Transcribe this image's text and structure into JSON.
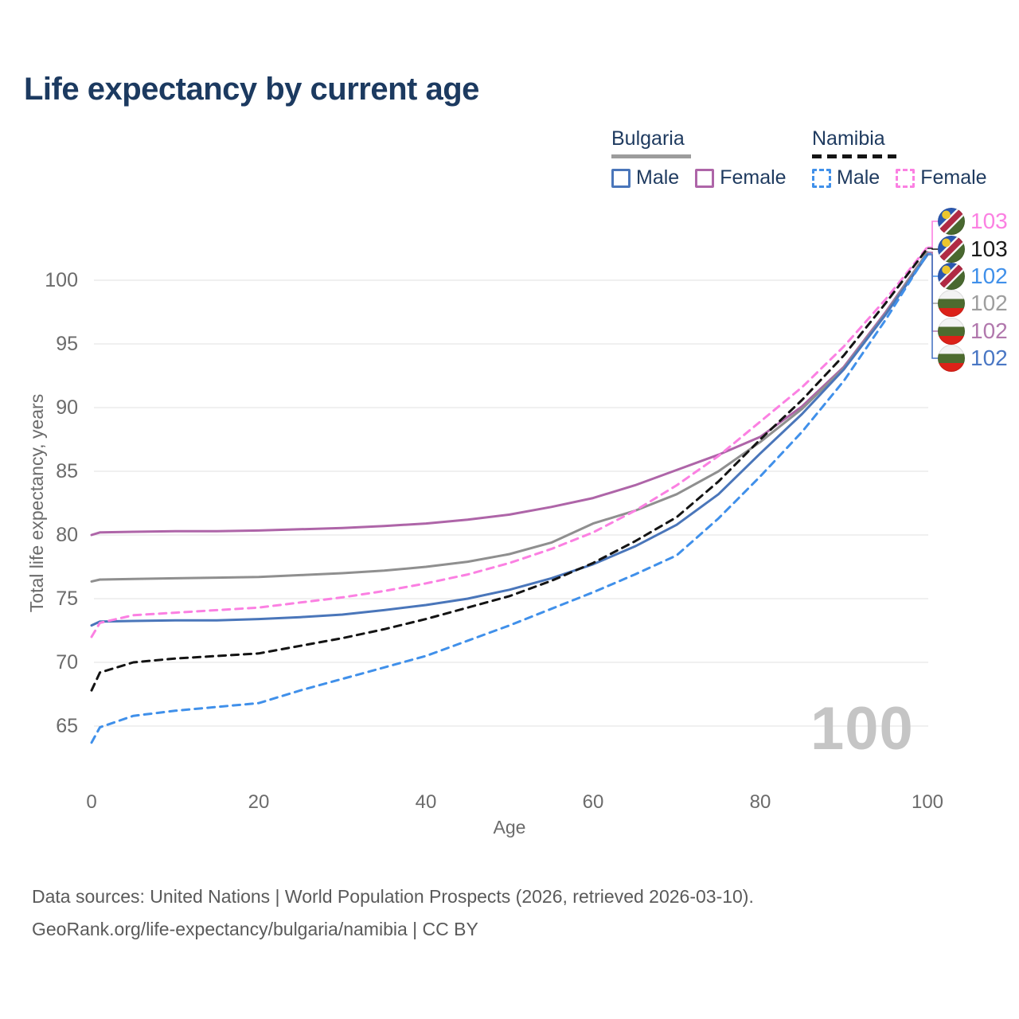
{
  "title": "Life expectancy by current age",
  "legend": {
    "groups": [
      {
        "name": "Bulgaria",
        "line_style": "solid",
        "underline_color": "#9c9c9c",
        "items": [
          {
            "label": "Male",
            "color": "#4a76ba"
          },
          {
            "label": "Female",
            "color": "#ae65a8"
          }
        ]
      },
      {
        "name": "Namibia",
        "line_style": "dashed",
        "underline_color": "#141414",
        "items": [
          {
            "label": "Male",
            "color": "#4090ea"
          },
          {
            "label": "Female",
            "color": "#fb80e2"
          }
        ]
      }
    ]
  },
  "watermark": "100",
  "chart_data": {
    "type": "line",
    "title": "Life expectancy by current age",
    "xlabel": "Age",
    "ylabel": "Total life expectancy, years",
    "xlim": [
      0,
      100
    ],
    "ylim": [
      62,
      104
    ],
    "xticks": [
      0,
      20,
      40,
      60,
      80,
      100
    ],
    "yticks": [
      65,
      70,
      75,
      80,
      85,
      90,
      95,
      100
    ],
    "grid": "horizontal",
    "legend_position": "top-right",
    "x": [
      0,
      1,
      5,
      10,
      15,
      20,
      25,
      30,
      35,
      40,
      45,
      50,
      55,
      60,
      65,
      70,
      75,
      80,
      85,
      90,
      95,
      100
    ],
    "series": [
      {
        "name": "Bulgaria Female",
        "country": "Bulgaria",
        "sex": "Female",
        "style": "solid",
        "color": "#ae65a8",
        "values": [
          80.0,
          80.2,
          80.25,
          80.3,
          80.3,
          80.35,
          80.45,
          80.55,
          80.7,
          80.9,
          81.2,
          81.6,
          82.2,
          82.9,
          83.9,
          85.1,
          86.3,
          87.7,
          90.1,
          93.2,
          97.5,
          102.2
        ]
      },
      {
        "name": "Bulgaria Both sexes",
        "country": "Bulgaria",
        "sex": "Both",
        "style": "solid",
        "color": "#8f8f8f",
        "values": [
          76.35,
          76.5,
          76.55,
          76.6,
          76.65,
          76.7,
          76.85,
          77.0,
          77.2,
          77.5,
          77.9,
          78.5,
          79.4,
          80.9,
          81.9,
          83.2,
          85.0,
          87.3,
          89.9,
          93.1,
          97.4,
          102.2
        ]
      },
      {
        "name": "Bulgaria Male",
        "country": "Bulgaria",
        "sex": "Male",
        "style": "solid",
        "color": "#4a76ba",
        "values": [
          72.9,
          73.2,
          73.25,
          73.3,
          73.3,
          73.4,
          73.55,
          73.75,
          74.1,
          74.5,
          75.0,
          75.7,
          76.6,
          77.7,
          79.1,
          80.8,
          83.2,
          86.4,
          89.5,
          93.0,
          97.3,
          102.0
        ]
      },
      {
        "name": "Namibia Female",
        "country": "Namibia",
        "sex": "Female",
        "style": "dashed",
        "color": "#fb80e2",
        "values": [
          72.0,
          73.1,
          73.7,
          73.9,
          74.1,
          74.3,
          74.7,
          75.1,
          75.6,
          76.2,
          76.9,
          77.8,
          78.9,
          80.2,
          81.9,
          83.9,
          86.2,
          88.9,
          91.6,
          94.8,
          98.5,
          102.6
        ]
      },
      {
        "name": "Namibia Both sexes",
        "country": "Namibia",
        "sex": "Both",
        "style": "dashed",
        "color": "#141414",
        "values": [
          67.8,
          69.2,
          70.0,
          70.3,
          70.5,
          70.7,
          71.3,
          71.9,
          72.6,
          73.4,
          74.3,
          75.2,
          76.4,
          77.8,
          79.5,
          81.4,
          84.2,
          87.5,
          90.6,
          94.1,
          98.2,
          102.5
        ]
      },
      {
        "name": "Namibia Male",
        "country": "Namibia",
        "sex": "Male",
        "style": "dashed",
        "color": "#4090ea",
        "values": [
          63.7,
          64.9,
          65.8,
          66.2,
          66.5,
          66.8,
          67.8,
          68.7,
          69.6,
          70.5,
          71.7,
          72.9,
          74.2,
          75.5,
          76.9,
          78.4,
          81.3,
          84.6,
          88.1,
          92.1,
          96.9,
          102.1
        ]
      }
    ],
    "end_labels": [
      {
        "value": "103",
        "series": "Namibia Female",
        "flag": "namibia",
        "color": "#fb80e2"
      },
      {
        "value": "103",
        "series": "Namibia Both sexes",
        "flag": "namibia",
        "color": "#1a1a1a"
      },
      {
        "value": "102",
        "series": "Namibia Male",
        "flag": "namibia",
        "color": "#4090ea"
      },
      {
        "value": "102",
        "series": "Bulgaria Both sexes",
        "flag": "bulgaria",
        "color": "#9e9e9e"
      },
      {
        "value": "102",
        "series": "Bulgaria Female",
        "flag": "bulgaria",
        "color": "#b178ad"
      },
      {
        "value": "102",
        "series": "Bulgaria Male",
        "flag": "bulgaria",
        "color": "#4a77c4"
      }
    ]
  },
  "footer": {
    "line1": "Data sources: United Nations | World Population Prospects (2026, retrieved 2026-03-10).",
    "line2": "GeoRank.org/life-expectancy/bulgaria/namibia | CC BY"
  }
}
